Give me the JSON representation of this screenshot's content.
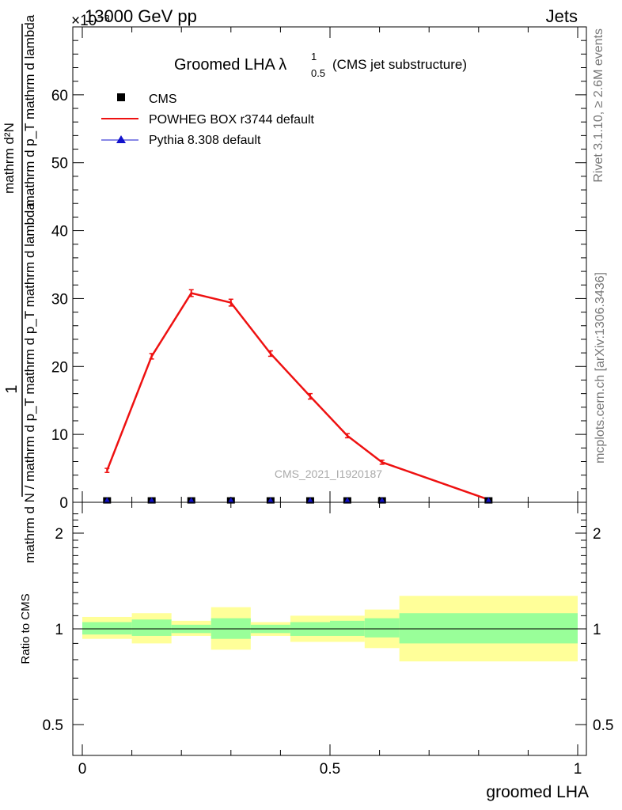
{
  "header": {
    "energy": "13000 GeV pp",
    "category": "Jets",
    "exponent": "×10⁻³"
  },
  "side": {
    "rivet": "Rivet 3.1.10, ≥ 2.6M events",
    "mcplots": "mcplots.cern.ch [arXiv:1306.3436]"
  },
  "watermark": "CMS_2021_I1920187",
  "chart_data": [
    {
      "type": "line",
      "title": "Groomed LHA λ",
      "title_sup": "1",
      "title_sub": "0.5",
      "title_note": "(CMS jet substructure)",
      "ylabel_top": "1",
      "ylabel_bottom": "mathrm d N / mathrm d p_T mathrm d p_T mathrm d lambda",
      "ylabel_num": "mathrm d²N",
      "ylabel_den": "mathrm d p_T mathrm d lambda",
      "ylim": [
        0,
        70
      ],
      "yticks": [
        0,
        10,
        20,
        30,
        40,
        50,
        60
      ],
      "ytick_labels": [
        "0",
        "10",
        "20",
        "30",
        "40",
        "50",
        "60"
      ],
      "xlim": [
        0,
        1
      ],
      "legend": {
        "placement": "top-left",
        "entries": [
          "CMS",
          "POWHEG BOX r3744 default",
          "Pythia 8.308 default"
        ]
      },
      "series": [
        {
          "name": "CMS",
          "marker": "square",
          "color": "#000000",
          "x": [
            0.05,
            0.14,
            0.22,
            0.3,
            0.38,
            0.46,
            0.535,
            0.605,
            0.82
          ],
          "y": [
            0.05,
            0.05,
            0.05,
            0.05,
            0.05,
            0.05,
            0.05,
            0.05,
            0.05
          ]
        },
        {
          "name": "POWHEG BOX r3744 default",
          "marker": "line",
          "color": "#ee1111",
          "x": [
            0.05,
            0.14,
            0.22,
            0.3,
            0.38,
            0.46,
            0.535,
            0.605,
            0.82
          ],
          "y": [
            4.7,
            21.5,
            30.8,
            29.4,
            21.9,
            15.6,
            9.8,
            5.9,
            0.4
          ],
          "err": [
            0.3,
            0.4,
            0.5,
            0.5,
            0.4,
            0.4,
            0.3,
            0.3,
            0.1
          ]
        },
        {
          "name": "Pythia 8.308 default",
          "marker": "triangle",
          "color": "#1111cc",
          "x": [
            0.05,
            0.14,
            0.22,
            0.3,
            0.38,
            0.46,
            0.535,
            0.605,
            0.82
          ],
          "y": [
            0.05,
            0.05,
            0.05,
            0.05,
            0.05,
            0.05,
            0.05,
            0.05,
            0.05
          ]
        }
      ]
    },
    {
      "type": "area",
      "ylabel": "Ratio to CMS",
      "xlabel": "groomed LHA",
      "ylim": [
        0.4,
        2.4
      ],
      "yticks": [
        0.5,
        1,
        2
      ],
      "ytick_labels": [
        "0.5",
        "1",
        "2"
      ],
      "xlim": [
        0,
        1
      ],
      "xticks": [
        0,
        0.5,
        1
      ],
      "xtick_labels": [
        "0",
        "0.5",
        "1"
      ],
      "reference_line": 1,
      "bins": [
        {
          "lo": 0.0,
          "hi": 0.1,
          "inner": [
            0.96,
            1.05
          ],
          "outer": [
            0.93,
            1.09
          ]
        },
        {
          "lo": 0.1,
          "hi": 0.18,
          "inner": [
            0.95,
            1.07
          ],
          "outer": [
            0.9,
            1.12
          ]
        },
        {
          "lo": 0.18,
          "hi": 0.26,
          "inner": [
            0.97,
            1.03
          ],
          "outer": [
            0.95,
            1.06
          ]
        },
        {
          "lo": 0.26,
          "hi": 0.34,
          "inner": [
            0.93,
            1.08
          ],
          "outer": [
            0.86,
            1.17
          ]
        },
        {
          "lo": 0.34,
          "hi": 0.42,
          "inner": [
            0.97,
            1.03
          ],
          "outer": [
            0.95,
            1.05
          ]
        },
        {
          "lo": 0.42,
          "hi": 0.5,
          "inner": [
            0.95,
            1.05
          ],
          "outer": [
            0.91,
            1.1
          ]
        },
        {
          "lo": 0.5,
          "hi": 0.57,
          "inner": [
            0.95,
            1.06
          ],
          "outer": [
            0.91,
            1.1
          ]
        },
        {
          "lo": 0.57,
          "hi": 0.64,
          "inner": [
            0.94,
            1.08
          ],
          "outer": [
            0.87,
            1.15
          ]
        },
        {
          "lo": 0.64,
          "hi": 1.0,
          "inner": [
            0.9,
            1.12
          ],
          "outer": [
            0.79,
            1.27
          ]
        }
      ],
      "colors": {
        "inner": "#99ff99",
        "outer": "#ffff99"
      }
    }
  ]
}
